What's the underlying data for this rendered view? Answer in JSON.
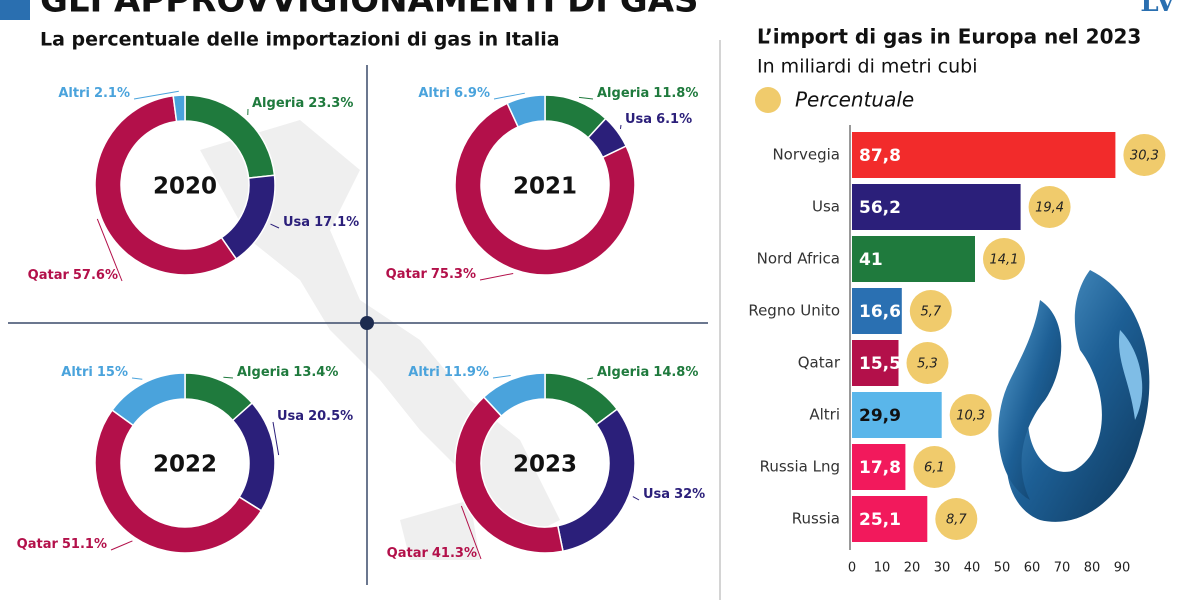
{
  "header": {
    "title": "GLI APPROVVIGIONAMENTI DI GAS",
    "logo": "LV",
    "left_title": "La percentuale delle importazioni di gas in Italia"
  },
  "chart_data": [
    {
      "type": "pie",
      "title": "2020",
      "categories": [
        "Algeria",
        "Usa",
        "Qatar",
        "Altri"
      ],
      "values": [
        23.3,
        17.1,
        57.6,
        2.1
      ],
      "value_labels": [
        "23.3%",
        "17.1%",
        "57.6%",
        "2.1%"
      ],
      "colors": [
        "#1f7a3d",
        "#2b1f7a",
        "#b3104a",
        "#4aa3dc"
      ]
    },
    {
      "type": "pie",
      "title": "2021",
      "categories": [
        "Algeria",
        "Usa",
        "Qatar",
        "Altri"
      ],
      "values": [
        11.8,
        6.1,
        75.3,
        6.9
      ],
      "value_labels": [
        "11.8%",
        "6.1%",
        "75.3%",
        "6.9%"
      ],
      "colors": [
        "#1f7a3d",
        "#2b1f7a",
        "#b3104a",
        "#4aa3dc"
      ]
    },
    {
      "type": "pie",
      "title": "2022",
      "categories": [
        "Algeria",
        "Usa",
        "Qatar",
        "Altri"
      ],
      "values": [
        13.4,
        20.5,
        51.1,
        15
      ],
      "value_labels": [
        "13.4%",
        "20.5%",
        "51.1%",
        "15%"
      ],
      "colors": [
        "#1f7a3d",
        "#2b1f7a",
        "#b3104a",
        "#4aa3dc"
      ]
    },
    {
      "type": "pie",
      "title": "2023",
      "categories": [
        "Algeria",
        "Usa",
        "Qatar",
        "Altri"
      ],
      "values": [
        14.8,
        32,
        41.3,
        11.9
      ],
      "value_labels": [
        "14.8%",
        "32%",
        "41.3%",
        "11.9%"
      ],
      "colors": [
        "#1f7a3d",
        "#2b1f7a",
        "#b3104a",
        "#4aa3dc"
      ]
    },
    {
      "type": "bar",
      "title": "L’import di gas in Europa nel 2023",
      "subtitle": "In miliardi di metri cubi",
      "categories": [
        "Norvegia",
        "Usa",
        "Nord Africa",
        "Regno Unito",
        "Qatar",
        "Altri",
        "Russia Lng",
        "Russia"
      ],
      "values": [
        87.8,
        56.2,
        41,
        16.6,
        15.5,
        29.9,
        17.8,
        25.1
      ],
      "value_labels": [
        "87,8",
        "56,2",
        "41",
        "16,6",
        "15,5",
        "29,9",
        "17,8",
        "25,1"
      ],
      "colors": [
        "#f22b2b",
        "#2b1f7a",
        "#1f7a3d",
        "#2a70b2",
        "#b3104a",
        "#5ab6ea",
        "#f2195c",
        "#f2195c"
      ],
      "xlim": [
        0,
        92
      ],
      "xticks": [
        0,
        10,
        20,
        30,
        40,
        50,
        60,
        70,
        80,
        90
      ],
      "percent": {
        "name": "Percentuale",
        "color": "#f0cb6c",
        "values": [
          30.3,
          19.4,
          14.1,
          5.7,
          5.3,
          10.3,
          6.1,
          8.7
        ],
        "value_labels": [
          "30,3",
          "19,4",
          "14,1",
          "5,7",
          "5,3",
          "10,3",
          "6,1",
          "8,7"
        ]
      }
    }
  ]
}
